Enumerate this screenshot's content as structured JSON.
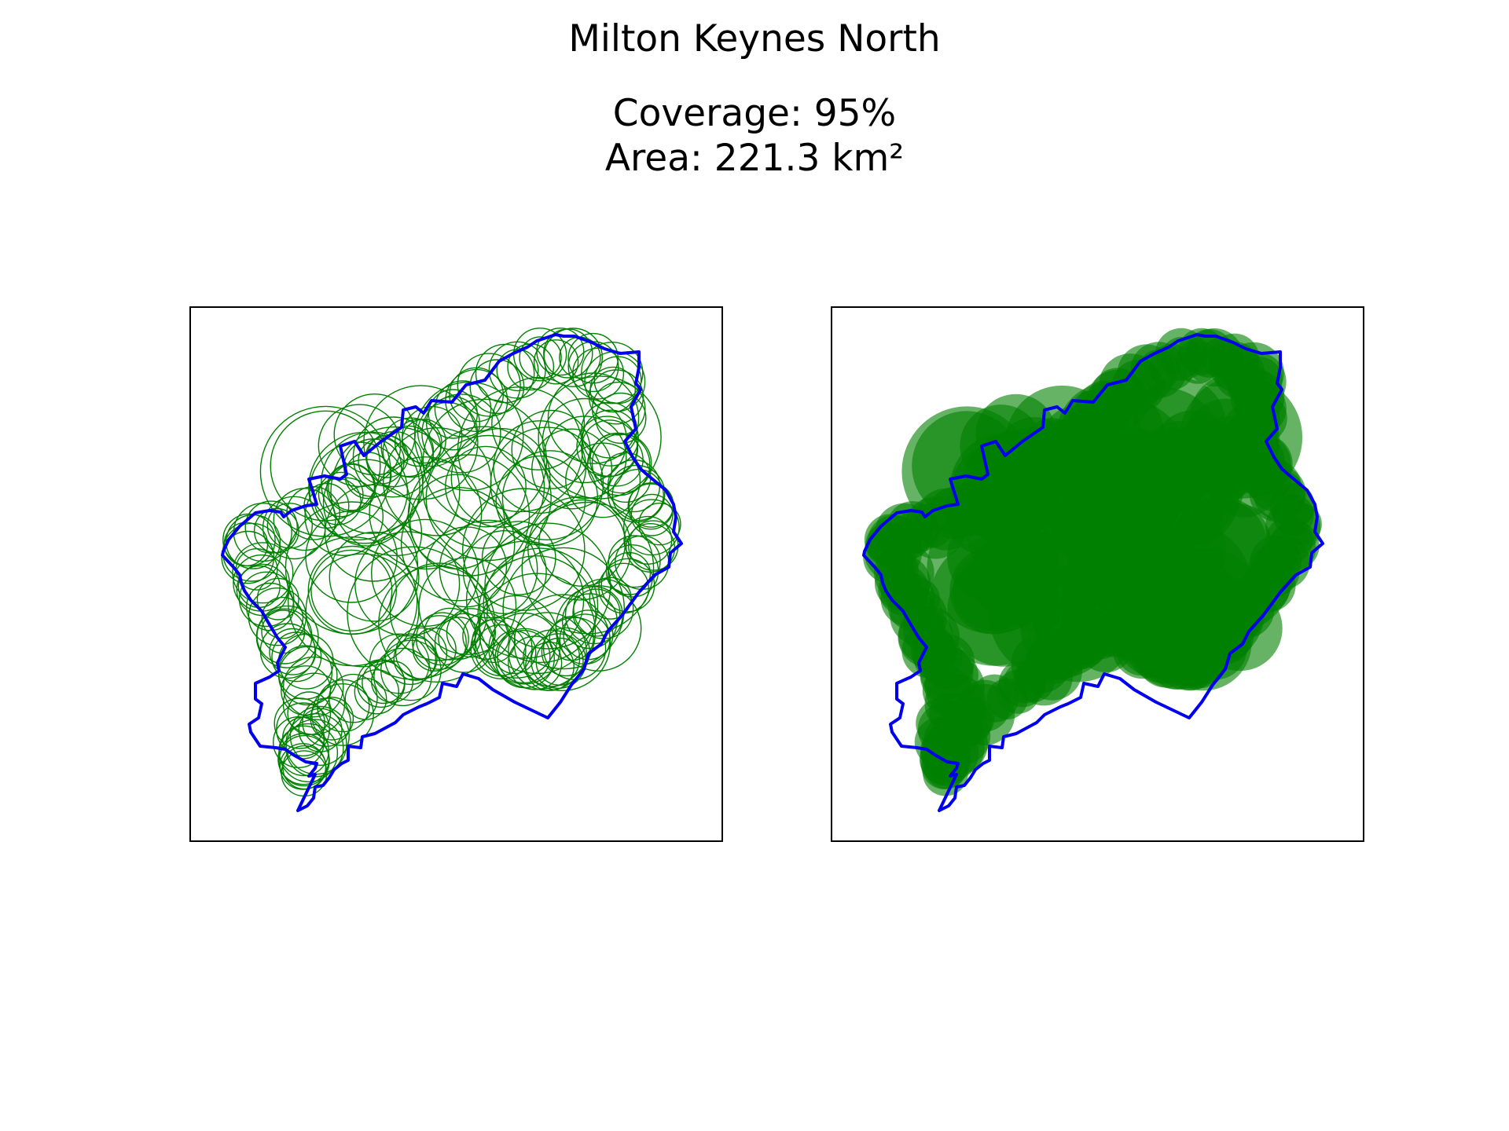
{
  "title": "Milton Keynes North",
  "subtitle": {
    "coverage": "Coverage: 95%",
    "area": "Area: 221.3 km²"
  },
  "colors": {
    "boundary": "#0000ee",
    "circle": "#008000",
    "frame": "#000000",
    "background": "#ffffff"
  },
  "panels": [
    {
      "name": "circle-outlines-map",
      "style": "outline"
    },
    {
      "name": "circle-filled-map",
      "style": "filled"
    }
  ]
}
